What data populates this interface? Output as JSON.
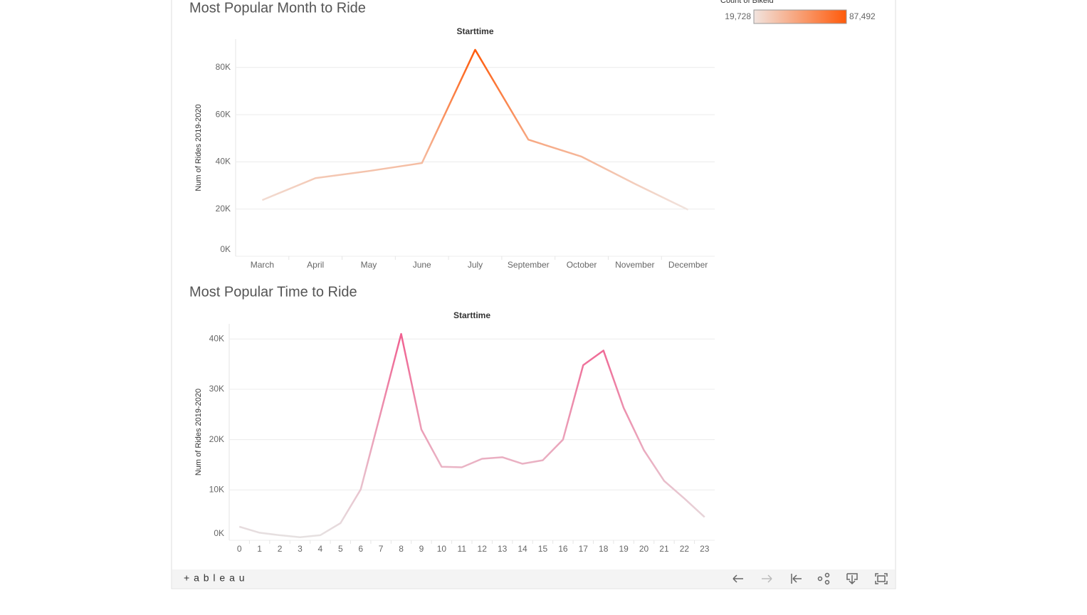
{
  "chart_data": [
    {
      "type": "line",
      "title": "Most Popular Month to Ride",
      "header": "Starttime",
      "y_label": "Num of Rides 2019-2020",
      "categories": [
        "March",
        "April",
        "May",
        "June",
        "July",
        "September",
        "October",
        "November",
        "December"
      ],
      "values": [
        23800,
        33100,
        36100,
        39500,
        87492,
        49400,
        42200,
        30700,
        19728
      ],
      "ylim": [
        0,
        92000
      ],
      "yticks": [
        {
          "value": 0,
          "label": "0K"
        },
        {
          "value": 20000,
          "label": "20K"
        },
        {
          "value": 40000,
          "label": "40K"
        },
        {
          "value": 60000,
          "label": "60K"
        },
        {
          "value": 80000,
          "label": "80K"
        }
      ],
      "grid": true,
      "color_scale": {
        "title": "Count of Bikeid",
        "min": {
          "value": 19728,
          "label": "19,728"
        },
        "max": {
          "value": 87492,
          "label": "87,492"
        },
        "colors": [
          "#f1e4df",
          "#ff5a0a"
        ]
      }
    },
    {
      "type": "line",
      "title": "Most Popular Time to Ride",
      "header": "Starttime",
      "y_label": "Num of Rides 2019-2020",
      "categories": [
        "0",
        "1",
        "2",
        "3",
        "4",
        "5",
        "6",
        "7",
        "8",
        "9",
        "10",
        "11",
        "12",
        "13",
        "14",
        "15",
        "16",
        "17",
        "18",
        "19",
        "20",
        "21",
        "22",
        "23"
      ],
      "values": [
        2700,
        1500,
        1000,
        600,
        1000,
        3400,
        10100,
        25500,
        41000,
        22000,
        14600,
        14500,
        16200,
        16500,
        15200,
        15900,
        20000,
        34800,
        37700,
        26300,
        17900,
        11800,
        8300,
        4600
      ],
      "ylim": [
        0,
        43000
      ],
      "yticks": [
        {
          "value": 0,
          "label": "0K"
        },
        {
          "value": 10000,
          "label": "10K"
        },
        {
          "value": 20000,
          "label": "20K"
        },
        {
          "value": 30000,
          "label": "30K"
        },
        {
          "value": 40000,
          "label": "40K"
        }
      ],
      "grid": true,
      "colors": [
        "#e6e1e1",
        "#f06090"
      ]
    }
  ],
  "footer": {
    "brand": "+ a b l e a u"
  }
}
